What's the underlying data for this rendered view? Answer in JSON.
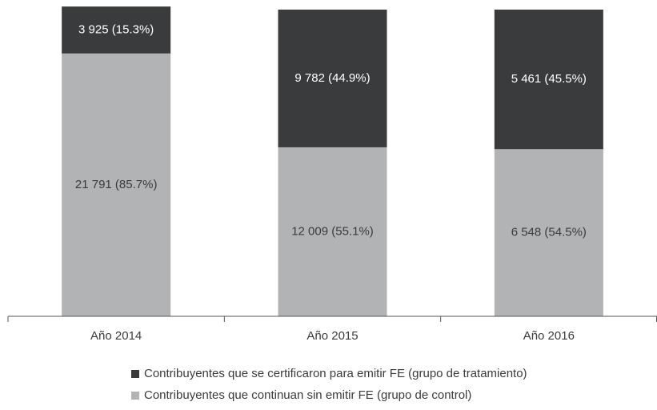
{
  "chart_data": {
    "type": "stacked_bar",
    "categories": [
      "Año 2014",
      "Año 2015",
      "Año 2016"
    ],
    "series": [
      {
        "name": "Contribuyentes que continuan sin emitir FE (grupo de control)",
        "color": "#b1b3b4",
        "values": [
          85.7,
          55.1,
          54.5
        ],
        "value_labels": [
          "21 791 (85.7%)",
          "12 009 (55.1%)",
          "6 548 (54.5%)"
        ]
      },
      {
        "name": "Contribuyentes que se certificaron para emitir FE (grupo de tratamiento)",
        "color": "#3a3b3c",
        "values": [
          15.3,
          44.9,
          45.5
        ],
        "value_labels": [
          "3 925 (15.3%)",
          "9 782 (44.9%)",
          "5 461 (45.5%)"
        ]
      }
    ],
    "ylim": [
      0,
      100
    ]
  }
}
